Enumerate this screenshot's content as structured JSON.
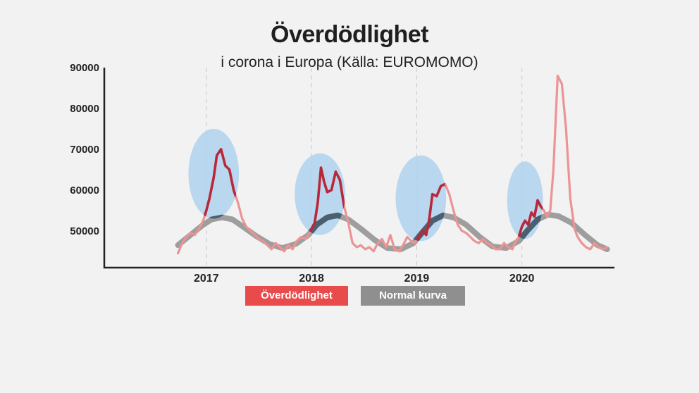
{
  "title": "Överdödlighet",
  "subtitle": "i corona i Europa (Källa: EUROMOMO)",
  "colors": {
    "excess": "#e94b4b",
    "excess_light": "#ec9393",
    "excess_dark": "#b8283a",
    "normal": "#8f8f8f",
    "normal_dark": "#4a6070",
    "highlight": "#a9d0ee",
    "axis": "#222222",
    "background": "#f2f2f2"
  },
  "legend": [
    {
      "label": "Överdödlighet",
      "color": "#e94b4b"
    },
    {
      "label": "Normal kurva",
      "color": "#8f8f8f"
    }
  ],
  "chart_data": {
    "type": "line",
    "x_unit": "year",
    "xlim": [
      2016.03,
      2020.88
    ],
    "ylim": [
      41000,
      90000
    ],
    "yticks": [
      50000,
      60000,
      70000,
      80000,
      90000
    ],
    "xticks": [
      2017,
      2018,
      2019,
      2020
    ],
    "gridlines": "vertical dashed at year ticks",
    "legend_position": "bottom-center",
    "series": [
      {
        "name": "Överdödlighet",
        "color": "#e94b4b",
        "x": [
          2016.73,
          2016.77,
          2016.81,
          2016.85,
          2016.89,
          2016.93,
          2016.97,
          2017.0,
          2017.03,
          2017.07,
          2017.1,
          2017.14,
          2017.18,
          2017.22,
          2017.26,
          2017.3,
          2017.34,
          2017.38,
          2017.42,
          2017.46,
          2017.5,
          2017.54,
          2017.58,
          2017.62,
          2017.66,
          2017.7,
          2017.74,
          2017.78,
          2017.82,
          2017.86,
          2017.9,
          2017.94,
          2017.97,
          2018.0,
          2018.03,
          2018.06,
          2018.09,
          2018.12,
          2018.15,
          2018.19,
          2018.23,
          2018.27,
          2018.31,
          2018.35,
          2018.39,
          2018.43,
          2018.47,
          2018.51,
          2018.55,
          2018.59,
          2018.63,
          2018.67,
          2018.71,
          2018.75,
          2018.79,
          2018.83,
          2018.87,
          2018.91,
          2018.95,
          2018.98,
          2019.02,
          2019.06,
          2019.09,
          2019.12,
          2019.15,
          2019.19,
          2019.23,
          2019.27,
          2019.31,
          2019.35,
          2019.39,
          2019.43,
          2019.47,
          2019.51,
          2019.55,
          2019.59,
          2019.63,
          2019.67,
          2019.71,
          2019.75,
          2019.79,
          2019.83,
          2019.87,
          2019.91,
          2019.94,
          2019.97,
          2020.0,
          2020.03,
          2020.06,
          2020.09,
          2020.12,
          2020.15,
          2020.18,
          2020.21,
          2020.24,
          2020.27,
          2020.3,
          2020.34,
          2020.38,
          2020.42,
          2020.46,
          2020.5,
          2020.53,
          2020.57,
          2020.61,
          2020.65,
          2020.69,
          2020.73,
          2020.77,
          2020.81
        ],
        "values": [
          44500,
          47000,
          48500,
          49500,
          49000,
          50500,
          52500,
          55000,
          58000,
          63000,
          68500,
          70000,
          66000,
          65000,
          60000,
          57000,
          53000,
          51000,
          50000,
          49000,
          48000,
          47500,
          46500,
          45500,
          47000,
          46000,
          45000,
          46500,
          45500,
          47500,
          48500,
          48000,
          49000,
          50500,
          52000,
          57000,
          65500,
          62000,
          59500,
          60000,
          64500,
          62500,
          56000,
          52000,
          47000,
          46000,
          46500,
          45500,
          46000,
          45000,
          47000,
          48000,
          46000,
          49000,
          45500,
          45000,
          46500,
          48500,
          47500,
          47000,
          48500,
          50000,
          49000,
          53000,
          59000,
          58500,
          61000,
          61500,
          59000,
          55000,
          51500,
          50000,
          49500,
          48500,
          47500,
          47000,
          48000,
          47000,
          46500,
          45500,
          45500,
          47000,
          46000,
          45500,
          47500,
          48500,
          51000,
          52500,
          51500,
          54500,
          53500,
          57500,
          56000,
          55000,
          53500,
          55000,
          65000,
          88000,
          86000,
          75000,
          58000,
          50500,
          48500,
          47000,
          46000,
          45500,
          47000,
          46000,
          45500,
          46000
        ]
      },
      {
        "name": "Normal kurva",
        "color": "#8f8f8f",
        "x": [
          2016.73,
          2016.85,
          2016.97,
          2017.05,
          2017.15,
          2017.25,
          2017.35,
          2017.47,
          2017.6,
          2017.72,
          2017.85,
          2017.97,
          2018.05,
          2018.15,
          2018.25,
          2018.35,
          2018.47,
          2018.6,
          2018.72,
          2018.85,
          2018.97,
          2019.05,
          2019.15,
          2019.25,
          2019.35,
          2019.47,
          2019.6,
          2019.72,
          2019.85,
          2019.97,
          2020.05,
          2020.15,
          2020.25,
          2020.35,
          2020.47,
          2020.6,
          2020.72,
          2020.81
        ],
        "values": [
          46500,
          49000,
          51500,
          52800,
          53300,
          52800,
          51000,
          48800,
          46800,
          45800,
          46800,
          49000,
          51500,
          53300,
          53800,
          52800,
          50500,
          47800,
          45800,
          45500,
          47000,
          49500,
          52500,
          53800,
          53300,
          51500,
          48500,
          46200,
          45800,
          47500,
          50000,
          52800,
          54000,
          53600,
          52000,
          49000,
          46500,
          45500
        ]
      }
    ],
    "highlighted_winter_peaks": [
      {
        "x": 2017.07,
        "y": 64000,
        "rx_years": 0.24,
        "ry_value": 11000
      },
      {
        "x": 2018.08,
        "y": 59000,
        "rx_years": 0.24,
        "ry_value": 10000
      },
      {
        "x": 2019.04,
        "y": 58000,
        "rx_years": 0.24,
        "ry_value": 10500
      },
      {
        "x": 2020.03,
        "y": 57500,
        "rx_years": 0.17,
        "ry_value": 9500
      }
    ]
  }
}
